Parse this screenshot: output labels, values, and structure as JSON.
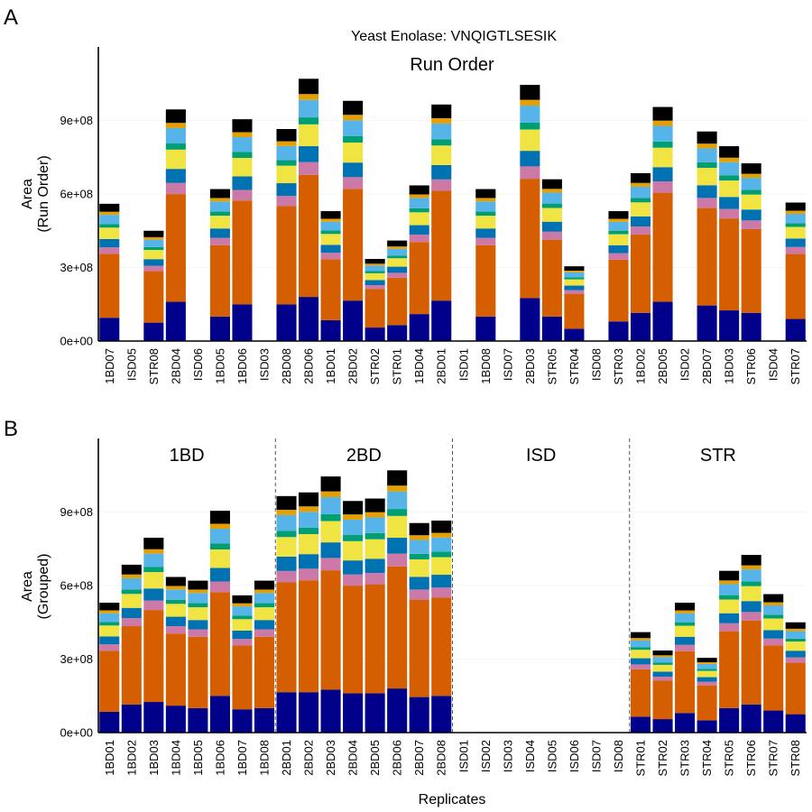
{
  "figure": {
    "title": "Yeast Enolase: VNQIGTLSESIK",
    "panel_a_letter": "A",
    "panel_b_letter": "B",
    "panel_a_facet": "Run Order",
    "panel_a_ylabel_1": "Area",
    "panel_a_ylabel_2": "(Run Order)",
    "panel_b_ylabel_1": "Area",
    "panel_b_ylabel_2": "(Grouped)",
    "panel_b_xlabel": "Replicates"
  },
  "chart_data": [
    {
      "type": "bar",
      "stacked": true,
      "panel": "A",
      "facet": "Run Order",
      "xlabel": "",
      "ylabel": "Area (Run Order)",
      "ylim": [
        0,
        1200000000
      ],
      "yticks": [
        0,
        300000000,
        600000000,
        900000000
      ],
      "ytick_labels": [
        "0e+00",
        "3e+08",
        "6e+08",
        "9e+08"
      ],
      "grid": true,
      "legend": "none",
      "series_colors": [
        "#00008b",
        "#d55e00",
        "#cc79a7",
        "#0072b2",
        "#f0e442",
        "#009e73",
        "#56b4e9",
        "#e69f00",
        "#000000"
      ],
      "categories": [
        "1BD07",
        "ISD05",
        "STR08",
        "2BD04",
        "ISD06",
        "1BD05",
        "1BD06",
        "ISD03",
        "2BD08",
        "2BD06",
        "1BD01",
        "2BD02",
        "STR02",
        "STR01",
        "1BD04",
        "2BD01",
        "ISD01",
        "1BD08",
        "ISD07",
        "2BD03",
        "STR05",
        "STR04",
        "ISD08",
        "STR03",
        "1BD02",
        "2BD05",
        "ISD02",
        "2BD07",
        "1BD03",
        "STR06",
        "ISD04",
        "STR07"
      ],
      "totals": [
        560000000,
        2000000,
        450000000,
        945000000,
        2000000,
        620000000,
        905000000,
        2000000,
        865000000,
        1070000000,
        530000000,
        980000000,
        335000000,
        410000000,
        635000000,
        965000000,
        2000000,
        620000000,
        3000000,
        1045000000,
        660000000,
        305000000,
        2000000,
        530000000,
        685000000,
        955000000,
        3000000,
        855000000,
        795000000,
        725000000,
        2000000,
        565000000
      ],
      "base_values": [
        95000000,
        1000000,
        75000000,
        160000000,
        1000000,
        100000000,
        150000000,
        1000000,
        150000000,
        180000000,
        85000000,
        165000000,
        55000000,
        65000000,
        110000000,
        165000000,
        1000000,
        100000000,
        1000000,
        175000000,
        100000000,
        50000000,
        1000000,
        80000000,
        115000000,
        160000000,
        1000000,
        145000000,
        125000000,
        115000000,
        1000000,
        90000000
      ]
    },
    {
      "type": "bar",
      "stacked": true,
      "panel": "B",
      "xlabel": "Replicates",
      "ylabel": "Area (Grouped)",
      "ylim": [
        0,
        1200000000
      ],
      "yticks": [
        0,
        300000000,
        600000000,
        900000000
      ],
      "ytick_labels": [
        "0e+00",
        "3e+08",
        "6e+08",
        "9e+08"
      ],
      "grid": true,
      "legend": "none",
      "facets": [
        "1BD",
        "2BD",
        "ISD",
        "STR"
      ],
      "categories": [
        "1BD01",
        "1BD02",
        "1BD03",
        "1BD04",
        "1BD05",
        "1BD06",
        "1BD07",
        "1BD08",
        "2BD01",
        "2BD02",
        "2BD03",
        "2BD04",
        "2BD05",
        "2BD06",
        "2BD07",
        "2BD08",
        "ISD01",
        "ISD02",
        "ISD03",
        "ISD04",
        "ISD05",
        "ISD06",
        "ISD07",
        "ISD08",
        "STR01",
        "STR02",
        "STR03",
        "STR04",
        "STR05",
        "STR06",
        "STR07",
        "STR08"
      ],
      "totals": [
        530000000,
        685000000,
        795000000,
        635000000,
        620000000,
        905000000,
        560000000,
        620000000,
        965000000,
        980000000,
        1045000000,
        945000000,
        955000000,
        1070000000,
        855000000,
        865000000,
        2000000,
        3000000,
        2000000,
        2000000,
        2000000,
        2000000,
        3000000,
        2000000,
        410000000,
        335000000,
        530000000,
        305000000,
        660000000,
        725000000,
        565000000,
        450000000
      ],
      "base_values": [
        85000000,
        115000000,
        125000000,
        110000000,
        100000000,
        150000000,
        95000000,
        100000000,
        165000000,
        165000000,
        175000000,
        160000000,
        160000000,
        180000000,
        145000000,
        150000000,
        1000000,
        1000000,
        1000000,
        1000000,
        1000000,
        1000000,
        1000000,
        1000000,
        65000000,
        55000000,
        80000000,
        50000000,
        100000000,
        115000000,
        90000000,
        75000000
      ]
    }
  ]
}
